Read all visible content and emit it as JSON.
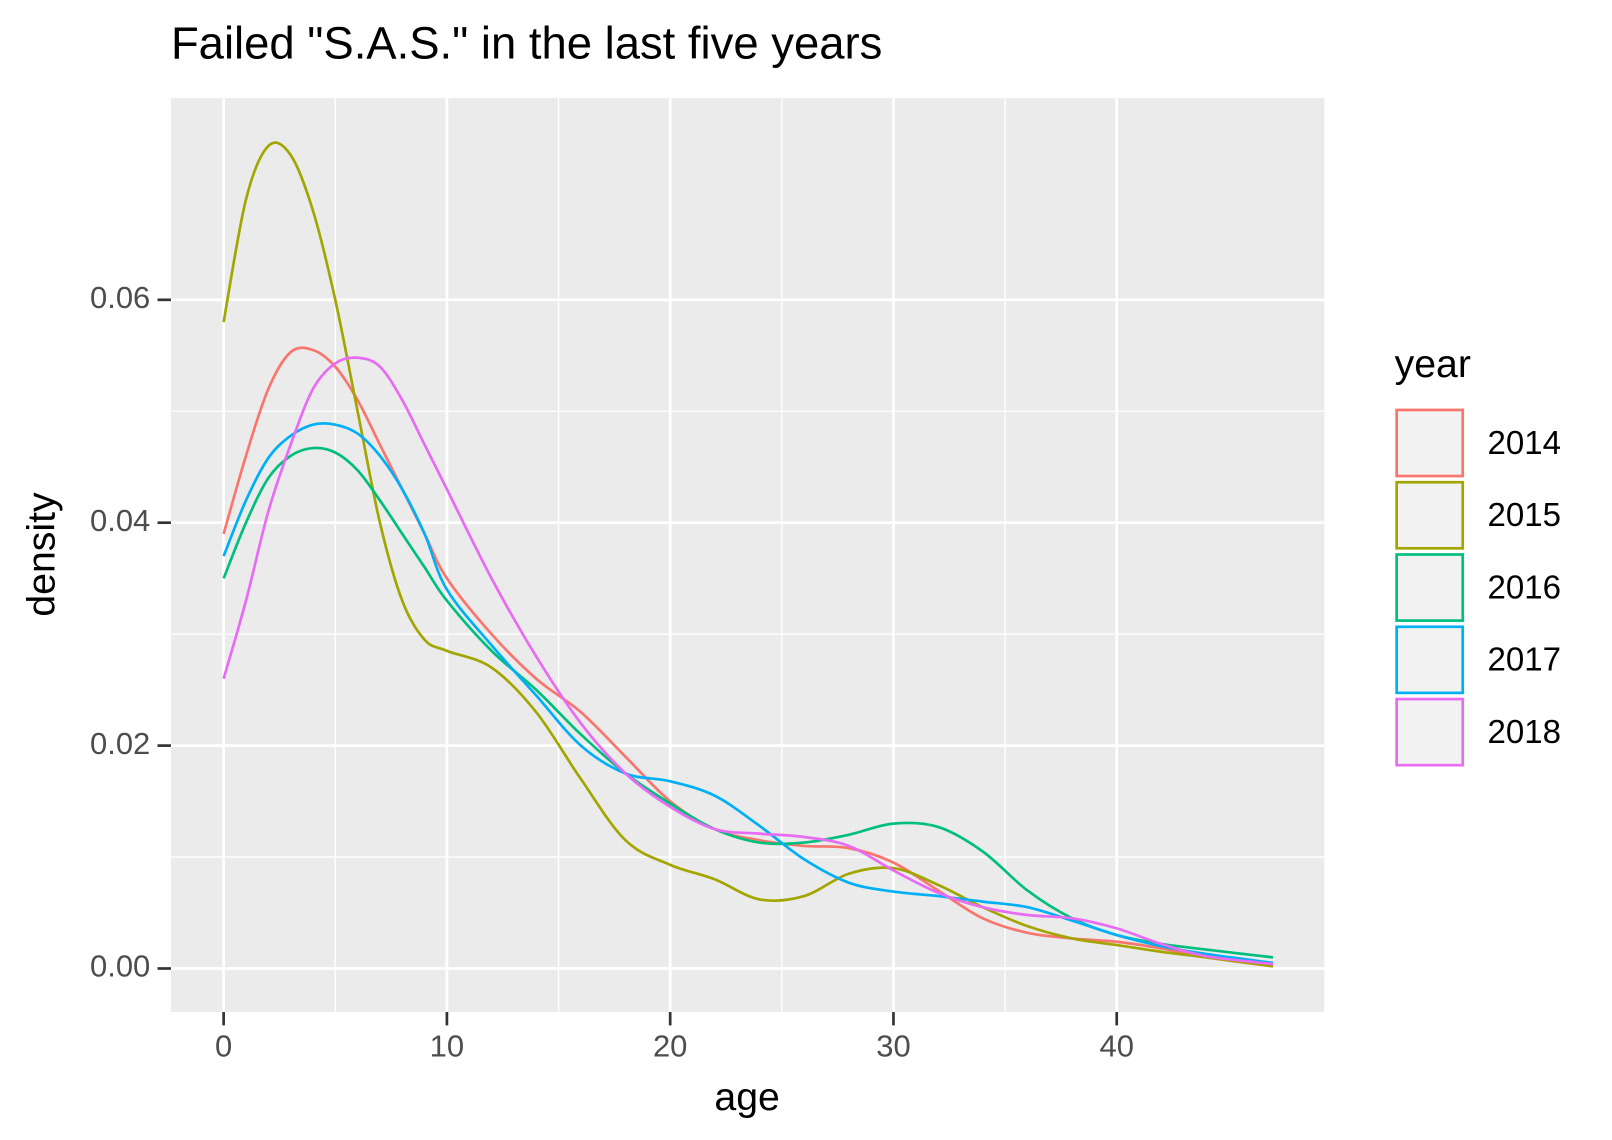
{
  "chart_data": {
    "type": "line",
    "title": "Failed \"S.A.S.\" in the last five years",
    "x_label": "age",
    "y_label": "density",
    "legend_title": "year",
    "legend_position": "right",
    "grid": true,
    "minor_grid": true,
    "x": [
      0,
      1,
      2,
      3,
      4,
      5,
      6,
      7,
      8,
      9,
      10,
      12,
      14,
      16,
      18,
      20,
      22,
      24,
      26,
      28,
      30,
      32,
      34,
      36,
      38,
      40,
      42,
      44,
      47
    ],
    "xlim": [
      -2.36,
      49.3
    ],
    "xticks": [
      0,
      10,
      20,
      30,
      40
    ],
    "ylim": [
      -0.0039,
      0.0781
    ],
    "yticks": [
      {
        "value": 0,
        "label": "0.00"
      },
      {
        "value": 0.02,
        "label": "0.02"
      },
      {
        "value": 0.04,
        "label": "0.04"
      },
      {
        "value": 0.06,
        "label": "0.06"
      }
    ],
    "series": [
      {
        "name": "2014",
        "color": "#f8766d",
        "values": [
          0.039,
          0.046,
          0.052,
          0.0553,
          0.0555,
          0.054,
          0.051,
          0.047,
          0.043,
          0.039,
          0.035,
          0.03,
          0.026,
          0.023,
          0.019,
          0.015,
          0.0125,
          0.0115,
          0.011,
          0.0108,
          0.0095,
          0.007,
          0.0045,
          0.0032,
          0.0027,
          0.0024,
          0.0018,
          0.001,
          0.0002
        ]
      },
      {
        "name": "2015",
        "color": "#a3a500",
        "values": [
          0.058,
          0.069,
          0.0738,
          0.073,
          0.068,
          0.06,
          0.05,
          0.04,
          0.033,
          0.0295,
          0.0285,
          0.027,
          0.023,
          0.017,
          0.0115,
          0.0093,
          0.008,
          0.0062,
          0.0065,
          0.0085,
          0.009,
          0.0075,
          0.0055,
          0.0038,
          0.0027,
          0.0021,
          0.0015,
          0.001,
          0.0002
        ]
      },
      {
        "name": "2016",
        "color": "#00bf7d",
        "values": [
          0.035,
          0.04,
          0.044,
          0.046,
          0.0467,
          0.0463,
          0.0447,
          0.042,
          0.039,
          0.036,
          0.033,
          0.0285,
          0.025,
          0.021,
          0.0175,
          0.0148,
          0.0125,
          0.0113,
          0.0113,
          0.012,
          0.013,
          0.0127,
          0.0105,
          0.007,
          0.0045,
          0.003,
          0.0022,
          0.0017,
          0.001
        ]
      },
      {
        "name": "2017",
        "color": "#00b0f6",
        "values": [
          0.037,
          0.042,
          0.0458,
          0.0478,
          0.0488,
          0.0488,
          0.048,
          0.046,
          0.043,
          0.039,
          0.034,
          0.029,
          0.0245,
          0.02,
          0.0175,
          0.0168,
          0.0155,
          0.0128,
          0.0098,
          0.0077,
          0.0069,
          0.0065,
          0.006,
          0.0055,
          0.0043,
          0.003,
          0.002,
          0.0013,
          0.0005
        ]
      },
      {
        "name": "2018",
        "color": "#e76bf3",
        "values": [
          0.026,
          0.033,
          0.041,
          0.047,
          0.052,
          0.0543,
          0.0548,
          0.054,
          0.051,
          0.047,
          0.043,
          0.035,
          0.028,
          0.022,
          0.0175,
          0.0145,
          0.0125,
          0.0121,
          0.0118,
          0.011,
          0.0088,
          0.0068,
          0.0055,
          0.0048,
          0.0045,
          0.0036,
          0.0022,
          0.0011,
          0.0004
        ]
      }
    ]
  }
}
